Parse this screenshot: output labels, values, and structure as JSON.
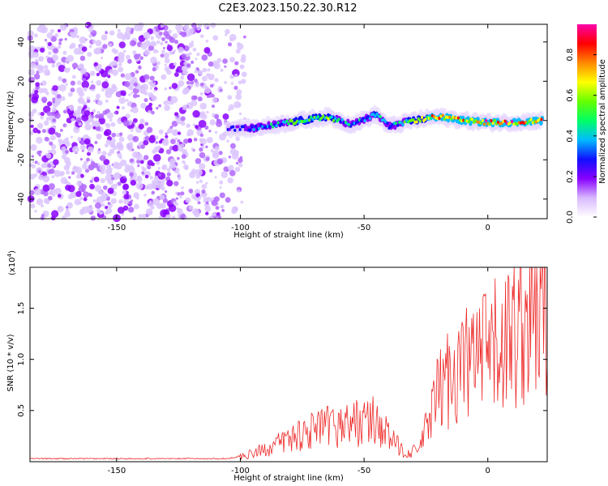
{
  "title": "C2E3.2023.150.22.30.R12",
  "chart_data": [
    {
      "type": "heatmap",
      "xlabel": "Height of straight line (km)",
      "ylabel": "Frequency (Hz)",
      "xlim": [
        -185,
        24
      ],
      "ylim": [
        -50,
        49
      ],
      "x_ticks": [
        -150,
        -100,
        -50,
        0
      ],
      "y_ticks": [
        -40,
        -20,
        0,
        20,
        40
      ],
      "grid": false,
      "colorbar": {
        "label": "Normalized spectral amplitude",
        "range": [
          0.0,
          0.95
        ],
        "ticks": [
          "0.0",
          "0.2",
          "0.4",
          "0.6",
          "0.8"
        ],
        "colors": [
          "#ffffff",
          "#d8b8ff",
          "#8800ff",
          "#1010ff",
          "#00bbff",
          "#00ff66",
          "#66ff00",
          "#ffff00",
          "#ff8800",
          "#ff0000",
          "#ff00aa"
        ]
      },
      "ridge": {
        "x": [
          -105,
          -95,
          -85,
          -75,
          -65,
          -55,
          -45,
          -40,
          -30,
          -20,
          -10,
          0,
          10,
          22
        ],
        "y": [
          -4,
          -4,
          -2,
          0,
          2,
          -2,
          3,
          -3,
          0,
          2,
          0,
          -1,
          -1,
          0
        ],
        "amplitude": [
          0.25,
          0.35,
          0.5,
          0.55,
          0.6,
          0.4,
          0.55,
          0.35,
          0.6,
          0.85,
          0.8,
          0.85,
          0.9,
          0.8
        ]
      },
      "noise_region_x": [
        -185,
        -98
      ]
    },
    {
      "type": "line",
      "xlabel": "Height of straight line (km)",
      "ylabel": "SNR (10 * v/v)",
      "y_scale_label": "(x10",
      "y_scale_exp": "4",
      "y_scale_close": ")",
      "xlim": [
        -185,
        24
      ],
      "ylim": [
        0,
        19000
      ],
      "x_ticks": [
        -150,
        -100,
        -50,
        0
      ],
      "y_ticks": [
        5000,
        10000,
        15000
      ],
      "y_tick_labels": [
        "0.5",
        "1.0",
        "1.5"
      ],
      "color": "#ee2a2a",
      "series": [
        {
          "x": [
            -185,
            -150,
            -105,
            -95,
            -85,
            -75,
            -65,
            -55,
            -45,
            -38,
            -33,
            -28,
            -24,
            -20,
            -15,
            -10,
            -5,
            0,
            5,
            10,
            15,
            20,
            24
          ],
          "y": [
            300,
            300,
            300,
            800,
            1800,
            3000,
            3500,
            4000,
            4200,
            2000,
            900,
            1200,
            4000,
            7000,
            9000,
            10000,
            10500,
            11000,
            12000,
            13000,
            14500,
            15500,
            16000
          ]
        }
      ]
    }
  ]
}
